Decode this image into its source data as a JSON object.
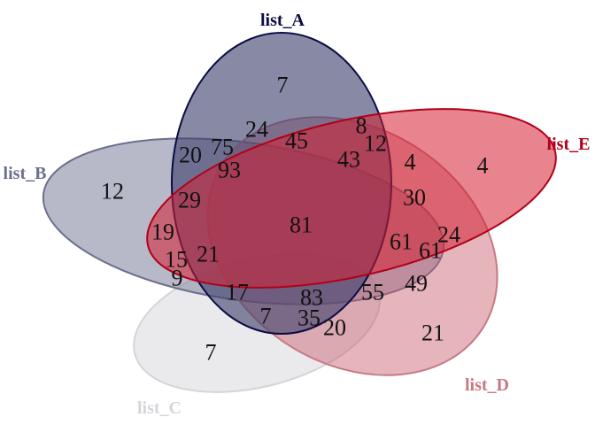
{
  "diagram": {
    "type": "venn",
    "sets": [
      {
        "key": "A",
        "name": "list_A",
        "fill": "#3f426d",
        "stroke": "#0b0c45",
        "fill_opacity": 0.62
      },
      {
        "key": "B",
        "name": "list_B",
        "fill": "#8d8ea6",
        "stroke": "#6c6f8e",
        "fill_opacity": 0.62
      },
      {
        "key": "C",
        "name": "list_C",
        "fill": "#d5d6da",
        "stroke": "#d3d5d9",
        "fill_opacity": 0.5
      },
      {
        "key": "D",
        "name": "list_D",
        "fill": "#c85a6a",
        "stroke": "#c77983",
        "fill_opacity": 0.45
      },
      {
        "key": "E",
        "name": "list_E",
        "fill": "#d41f31",
        "stroke": "#b2001a",
        "fill_opacity": 0.55
      }
    ],
    "counts": [
      "7",
      "12",
      "7",
      "21",
      "4",
      "20",
      "75",
      "24",
      "8",
      "45",
      "12",
      "93",
      "43",
      "4",
      "29",
      "30",
      "81",
      "19",
      "15",
      "21",
      "61",
      "24",
      "61",
      "9",
      "49",
      "17",
      "83",
      "55",
      "7",
      "35",
      "20"
    ]
  }
}
